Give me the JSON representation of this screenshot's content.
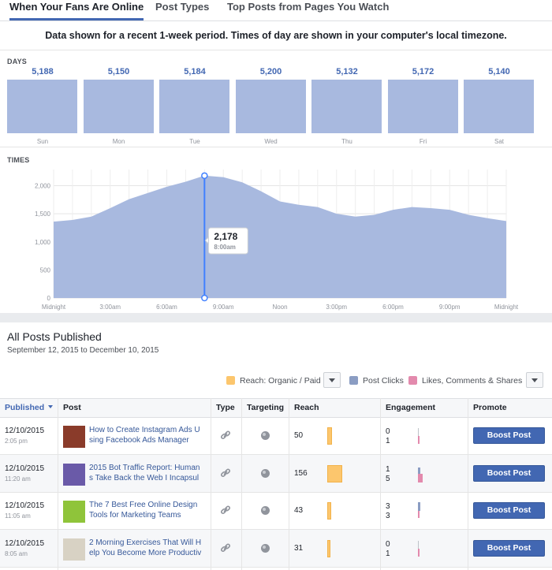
{
  "tabs": [
    {
      "label": "When Your Fans Are Online",
      "active": true
    },
    {
      "label": "Post Types",
      "active": false
    },
    {
      "label": "Top Posts from Pages You Watch",
      "active": false
    }
  ],
  "notice": "Data shown for a recent 1-week period. Times of day are shown in your computer's local timezone.",
  "days_label": "DAYS",
  "times_label": "TIMES",
  "days": [
    {
      "day": "Sun",
      "value": "5,188"
    },
    {
      "day": "Mon",
      "value": "5,150"
    },
    {
      "day": "Tue",
      "value": "5,184"
    },
    {
      "day": "Wed",
      "value": "5,200"
    },
    {
      "day": "Thu",
      "value": "5,132"
    },
    {
      "day": "Fri",
      "value": "5,172"
    },
    {
      "day": "Sat",
      "value": "5,140"
    }
  ],
  "chart_data": {
    "type": "area",
    "y_ticks": [
      "0",
      "500",
      "1,000",
      "1,500",
      "2,000"
    ],
    "ylim": [
      0,
      2400
    ],
    "x_ticks": [
      "Midnight",
      "3:00am",
      "6:00am",
      "9:00am",
      "Noon",
      "3:00pm",
      "6:00pm",
      "9:00pm",
      "Midnight"
    ],
    "x_hours": [
      0,
      1,
      2,
      3,
      4,
      5,
      6,
      7,
      8,
      9,
      10,
      11,
      12,
      13,
      14,
      15,
      16,
      17,
      18,
      19,
      20,
      21,
      22,
      23,
      24
    ],
    "values": [
      1360,
      1390,
      1450,
      1600,
      1760,
      1870,
      1980,
      2070,
      2178,
      2150,
      2060,
      1900,
      1720,
      1660,
      1620,
      1500,
      1450,
      1480,
      1570,
      1620,
      1600,
      1570,
      1480,
      1420,
      1370
    ],
    "tooltip": {
      "value": "2,178",
      "time": "8:00am",
      "hour": 8
    },
    "grid": true,
    "colors": {
      "fill": "#a8b9df",
      "marker": "#4080ff"
    }
  },
  "posts": {
    "title": "All Posts Published",
    "date_range": "September 12, 2015 to December 10, 2015",
    "legend": [
      {
        "label": "Reach: Organic / Paid",
        "color": "#fcc66d",
        "dropdown": true
      },
      {
        "label": "Post Clicks",
        "color": "#8b9dc3",
        "dropdown": false
      },
      {
        "label": "Likes, Comments & Shares",
        "color": "#e38aad",
        "dropdown": true
      }
    ],
    "columns": {
      "published": "Published",
      "post": "Post",
      "type": "Type",
      "targeting": "Targeting",
      "reach": "Reach",
      "engagement": "Engagement",
      "promote": "Promote"
    },
    "boost_label": "Boost Post",
    "rows": [
      {
        "date": "12/10/2015",
        "time": "2:05 pm",
        "title1": "How to Create Instagram Ads U",
        "title2": "sing Facebook Ads Manager",
        "reach": "50",
        "reach_fraction": 0.32,
        "clicks": "0",
        "likes": "1",
        "thumb": "#8a3b2a"
      },
      {
        "date": "12/10/2015",
        "time": "11:20 am",
        "title1": "2015 Bot Traffic Report: Human",
        "title2": "s Take Back the Web I Incapsul",
        "reach": "156",
        "reach_fraction": 1.0,
        "clicks": "1",
        "likes": "5",
        "thumb": "#6a5aa8"
      },
      {
        "date": "12/10/2015",
        "time": "11:05 am",
        "title1": "The 7 Best Free Online Design",
        "title2": "Tools for Marketing Teams",
        "reach": "43",
        "reach_fraction": 0.28,
        "clicks": "3",
        "likes": "3",
        "thumb": "#8fc43a"
      },
      {
        "date": "12/10/2015",
        "time": "8:05 am",
        "title1": "2 Morning Exercises That Will H",
        "title2": "elp You Become More Productiv",
        "reach": "31",
        "reach_fraction": 0.2,
        "clicks": "0",
        "likes": "1",
        "thumb": "#d8d2c4"
      }
    ]
  }
}
